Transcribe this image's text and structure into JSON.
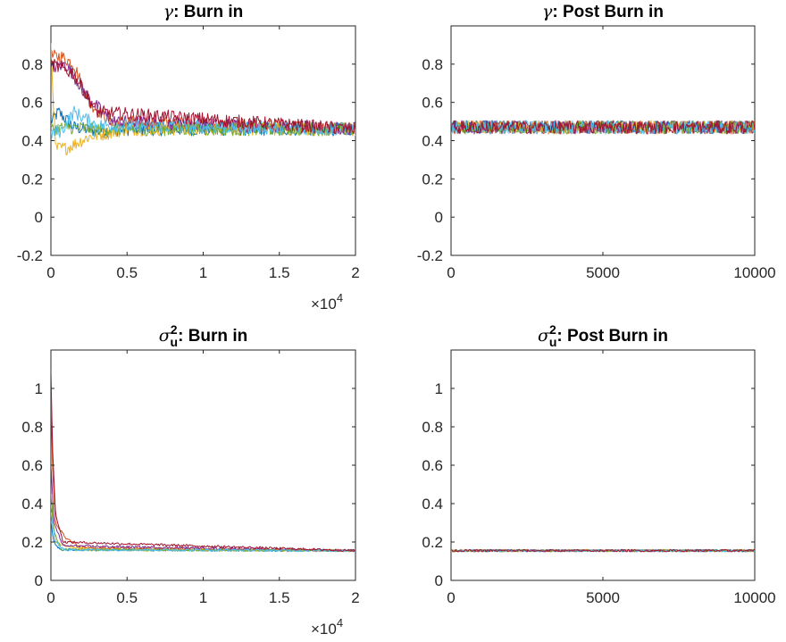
{
  "chart_data": [
    {
      "type": "line",
      "id": "gamma-burn",
      "title_symbol": "γ",
      "title_text": ": Burn in",
      "xlim": [
        0,
        20000
      ],
      "ylim": [
        -0.2,
        1
      ],
      "xticks": [
        0,
        5000,
        10000,
        15000,
        20000
      ],
      "xtick_labels": [
        "0",
        "0.5",
        "1",
        "1.5",
        "2"
      ],
      "yticks": [
        -0.2,
        0,
        0.2,
        0.4,
        0.6,
        0.8
      ],
      "ytick_labels": [
        "-0.2",
        "0",
        "0.2",
        "0.4",
        "0.6",
        "0.8"
      ],
      "x_exponent": "10",
      "x_exponent_power": "4",
      "series": [
        {
          "color": "#0072BD",
          "values": [
            [
              0,
              0.5
            ],
            [
              500,
              0.55
            ],
            [
              1500,
              0.47
            ],
            [
              3000,
              0.45
            ],
            [
              5000,
              0.46
            ],
            [
              20000,
              0.46
            ]
          ]
        },
        {
          "color": "#D95319",
          "values": [
            [
              0,
              0.84
            ],
            [
              700,
              0.84
            ],
            [
              1500,
              0.8
            ],
            [
              2500,
              0.6
            ],
            [
              4000,
              0.5
            ],
            [
              20000,
              0.46
            ]
          ]
        },
        {
          "color": "#EDB120",
          "values": [
            [
              0,
              0.9
            ],
            [
              300,
              0.36
            ],
            [
              1000,
              0.36
            ],
            [
              2500,
              0.42
            ],
            [
              5000,
              0.46
            ],
            [
              20000,
              0.46
            ]
          ]
        },
        {
          "color": "#7E2F8E",
          "values": [
            [
              0,
              0.78
            ],
            [
              1000,
              0.8
            ],
            [
              2500,
              0.62
            ],
            [
              4000,
              0.5
            ],
            [
              20000,
              0.46
            ]
          ]
        },
        {
          "color": "#77AC30",
          "values": [
            [
              0,
              0.46
            ],
            [
              1000,
              0.47
            ],
            [
              3000,
              0.46
            ],
            [
              20000,
              0.46
            ]
          ]
        },
        {
          "color": "#4DBEEE",
          "values": [
            [
              0,
              0.44
            ],
            [
              700,
              0.45
            ],
            [
              1500,
              0.55
            ],
            [
              3000,
              0.48
            ],
            [
              20000,
              0.46
            ]
          ]
        },
        {
          "color": "#A2142F",
          "values": [
            [
              0,
              0.8
            ],
            [
              1500,
              0.75
            ],
            [
              3000,
              0.55
            ],
            [
              20000,
              0.46
            ]
          ]
        }
      ]
    },
    {
      "type": "line",
      "id": "gamma-post",
      "title_symbol": "γ",
      "title_text": ": Post Burn in",
      "xlim": [
        0,
        10000
      ],
      "ylim": [
        -0.2,
        1
      ],
      "xticks": [
        0,
        5000,
        10000
      ],
      "xtick_labels": [
        "0",
        "5000",
        "10000"
      ],
      "yticks": [
        -0.2,
        0,
        0.2,
        0.4,
        0.6,
        0.8
      ],
      "ytick_labels": [
        "-0.2",
        "0",
        "0.2",
        "0.4",
        "0.6",
        "0.8"
      ],
      "x_exponent": "",
      "x_exponent_power": "",
      "series": [
        {
          "color": "#0072BD",
          "values": [
            [
              0,
              0.47
            ],
            [
              10000,
              0.47
            ]
          ]
        },
        {
          "color": "#D95319",
          "values": [
            [
              0,
              0.47
            ],
            [
              10000,
              0.47
            ]
          ]
        },
        {
          "color": "#EDB120",
          "values": [
            [
              0,
              0.47
            ],
            [
              10000,
              0.47
            ]
          ]
        },
        {
          "color": "#7E2F8E",
          "values": [
            [
              0,
              0.47
            ],
            [
              10000,
              0.47
            ]
          ]
        },
        {
          "color": "#77AC30",
          "values": [
            [
              0,
              0.47
            ],
            [
              10000,
              0.47
            ]
          ]
        },
        {
          "color": "#4DBEEE",
          "values": [
            [
              0,
              0.47
            ],
            [
              10000,
              0.47
            ]
          ]
        },
        {
          "color": "#A2142F",
          "values": [
            [
              0,
              0.47
            ],
            [
              10000,
              0.47
            ]
          ]
        }
      ]
    },
    {
      "type": "line",
      "id": "sigma-burn",
      "title_symbol": "σ",
      "title_sup": "2",
      "title_sub": "u",
      "title_text": ": Burn in",
      "xlim": [
        0,
        20000
      ],
      "ylim": [
        0,
        1.2
      ],
      "xticks": [
        0,
        5000,
        10000,
        15000,
        20000
      ],
      "xtick_labels": [
        "0",
        "0.5",
        "1",
        "1.5",
        "2"
      ],
      "yticks": [
        0,
        0.2,
        0.4,
        0.6,
        0.8,
        1
      ],
      "ytick_labels": [
        "0",
        "0.2",
        "0.4",
        "0.6",
        "0.8",
        "1"
      ],
      "x_exponent": "10",
      "x_exponent_power": "4",
      "series": [
        {
          "color": "#0072BD",
          "values": [
            [
              0,
              0.3
            ],
            [
              200,
              0.2
            ],
            [
              600,
              0.16
            ],
            [
              20000,
              0.155
            ]
          ]
        },
        {
          "color": "#D95319",
          "values": [
            [
              0,
              0.98
            ],
            [
              100,
              0.6
            ],
            [
              300,
              0.3
            ],
            [
              1000,
              0.22
            ],
            [
              2000,
              0.17
            ],
            [
              20000,
              0.155
            ]
          ]
        },
        {
          "color": "#EDB120",
          "values": [
            [
              0,
              0.4
            ],
            [
              300,
              0.2
            ],
            [
              1000,
              0.18
            ],
            [
              2500,
              0.16
            ],
            [
              20000,
              0.155
            ]
          ]
        },
        {
          "color": "#7E2F8E",
          "values": [
            [
              0,
              0.6
            ],
            [
              200,
              0.3
            ],
            [
              800,
              0.18
            ],
            [
              20000,
              0.155
            ]
          ]
        },
        {
          "color": "#77AC30",
          "values": [
            [
              0,
              0.45
            ],
            [
              200,
              0.25
            ],
            [
              700,
              0.16
            ],
            [
              20000,
              0.155
            ]
          ]
        },
        {
          "color": "#4DBEEE",
          "values": [
            [
              0,
              0.35
            ],
            [
              300,
              0.2
            ],
            [
              900,
              0.16
            ],
            [
              20000,
              0.155
            ]
          ]
        },
        {
          "color": "#A2142F",
          "values": [
            [
              0,
              1.1
            ],
            [
              100,
              0.7
            ],
            [
              300,
              0.35
            ],
            [
              800,
              0.2
            ],
            [
              20000,
              0.155
            ]
          ]
        }
      ]
    },
    {
      "type": "line",
      "id": "sigma-post",
      "title_symbol": "σ",
      "title_sup": "2",
      "title_sub": "u",
      "title_text": ": Post Burn in",
      "xlim": [
        0,
        10000
      ],
      "ylim": [
        0,
        1.2
      ],
      "xticks": [
        0,
        5000,
        10000
      ],
      "xtick_labels": [
        "0",
        "5000",
        "10000"
      ],
      "yticks": [
        0,
        0.2,
        0.4,
        0.6,
        0.8,
        1
      ],
      "ytick_labels": [
        "0",
        "0.2",
        "0.4",
        "0.6",
        "0.8",
        "1"
      ],
      "x_exponent": "",
      "x_exponent_power": "",
      "series": [
        {
          "color": "#0072BD",
          "values": [
            [
              0,
              0.155
            ],
            [
              10000,
              0.155
            ]
          ]
        },
        {
          "color": "#D95319",
          "values": [
            [
              0,
              0.155
            ],
            [
              10000,
              0.155
            ]
          ]
        },
        {
          "color": "#EDB120",
          "values": [
            [
              0,
              0.155
            ],
            [
              10000,
              0.155
            ]
          ]
        },
        {
          "color": "#7E2F8E",
          "values": [
            [
              0,
              0.155
            ],
            [
              10000,
              0.155
            ]
          ]
        },
        {
          "color": "#77AC30",
          "values": [
            [
              0,
              0.155
            ],
            [
              10000,
              0.155
            ]
          ]
        },
        {
          "color": "#4DBEEE",
          "values": [
            [
              0,
              0.155
            ],
            [
              10000,
              0.155
            ]
          ]
        },
        {
          "color": "#A2142F",
          "values": [
            [
              0,
              0.155
            ],
            [
              10000,
              0.155
            ]
          ]
        }
      ]
    }
  ]
}
